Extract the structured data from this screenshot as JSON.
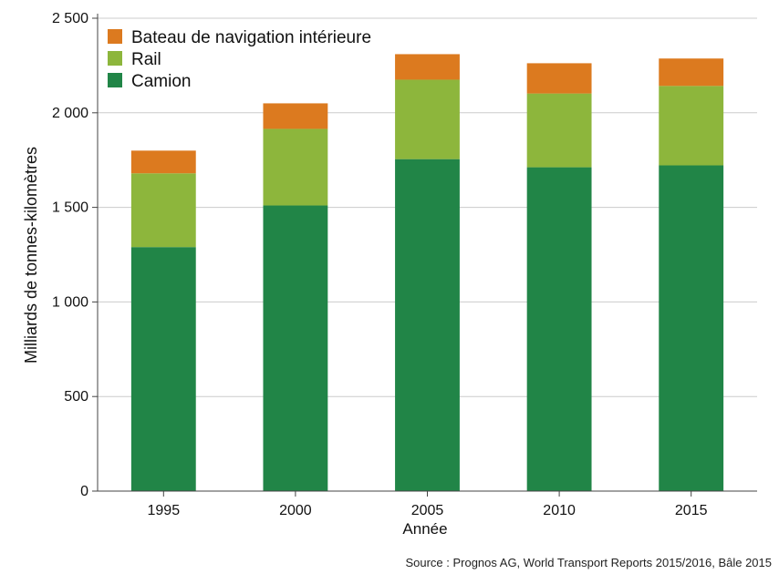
{
  "chart_data": {
    "type": "bar",
    "stacked": true,
    "categories": [
      "1995",
      "2000",
      "2005",
      "2010",
      "2015"
    ],
    "series": [
      {
        "name": "Camion",
        "color": "#218547",
        "values": [
          1290,
          1510,
          1755,
          1712,
          1722
        ]
      },
      {
        "name": "Rail",
        "color": "#8db63c",
        "values": [
          390,
          405,
          420,
          390,
          420
        ]
      },
      {
        "name": "Bateau de navigation intérieure",
        "color": "#dc7a1f",
        "values": [
          120,
          135,
          135,
          160,
          145
        ]
      }
    ],
    "xlabel": "Année",
    "ylabel": "Milliards de tonnes-kilomètres",
    "ylim": [
      0,
      2500
    ],
    "yticks": [
      0,
      500,
      1000,
      1500,
      2000,
      2500
    ],
    "ytick_labels": [
      "0",
      "500",
      "1 000",
      "1 500",
      "2 000",
      "2 500"
    ],
    "grid": true,
    "legend_position": "top-left",
    "legend_order": [
      "Bateau de navigation intérieure",
      "Rail",
      "Camion"
    ],
    "source": "Source : Prognos AG, World Transport Reports 2015/2016, Bâle 2015"
  }
}
